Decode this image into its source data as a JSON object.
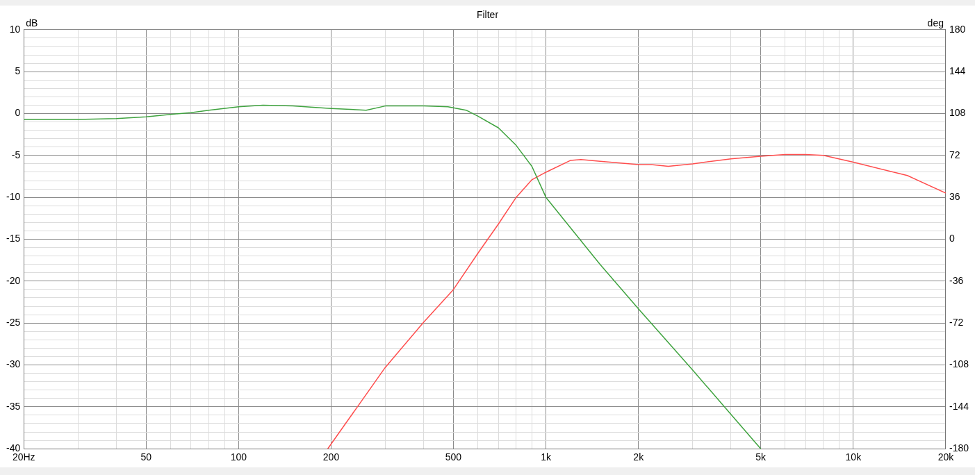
{
  "chart_data": {
    "type": "line",
    "title": "Filter",
    "ylabel": "dB",
    "y2label": "deg",
    "log": "x",
    "grid": true,
    "legend": false,
    "marker": "none",
    "line_style": "solid",
    "xlim": [
      20,
      20000
    ],
    "xticks": [
      {
        "value": 20,
        "label": "20Hz"
      },
      {
        "value": 30,
        "label": null
      },
      {
        "value": 40,
        "label": null
      },
      50,
      {
        "value": 60,
        "label": null
      },
      {
        "value": 70,
        "label": null
      },
      {
        "value": 80,
        "label": null
      },
      {
        "value": 90,
        "label": null
      },
      100,
      200,
      {
        "value": 300,
        "label": null
      },
      {
        "value": 400,
        "label": null
      },
      500,
      {
        "value": 600,
        "label": null
      },
      {
        "value": 700,
        "label": null
      },
      {
        "value": 800,
        "label": null
      },
      {
        "value": 900,
        "label": null
      },
      {
        "value": 1000,
        "label": "1k"
      },
      {
        "value": 2000,
        "label": "2k"
      },
      {
        "value": 3000,
        "label": null
      },
      {
        "value": 4000,
        "label": null
      },
      {
        "value": 5000,
        "label": "5k"
      },
      {
        "value": 6000,
        "label": null
      },
      {
        "value": 7000,
        "label": null
      },
      {
        "value": 8000,
        "label": null
      },
      {
        "value": 9000,
        "label": null
      },
      {
        "value": 10000,
        "label": "10k"
      },
      {
        "value": 20000,
        "label": "20k"
      }
    ],
    "ylim": [
      -40,
      10
    ],
    "yticks": [
      -40,
      {
        "value": -39,
        "label": null
      },
      {
        "value": -38,
        "label": null
      },
      {
        "value": -37,
        "label": null
      },
      {
        "value": -36,
        "label": null
      },
      -35,
      {
        "value": -34,
        "label": null
      },
      {
        "value": -33,
        "label": null
      },
      {
        "value": -32,
        "label": null
      },
      {
        "value": -31,
        "label": null
      },
      -30,
      {
        "value": -29,
        "label": null
      },
      {
        "value": -28,
        "label": null
      },
      {
        "value": -27,
        "label": null
      },
      {
        "value": -26,
        "label": null
      },
      -25,
      {
        "value": -24,
        "label": null
      },
      {
        "value": -23,
        "label": null
      },
      {
        "value": -22,
        "label": null
      },
      {
        "value": -21,
        "label": null
      },
      -20,
      {
        "value": -19,
        "label": null
      },
      {
        "value": -18,
        "label": null
      },
      {
        "value": -17,
        "label": null
      },
      {
        "value": -16,
        "label": null
      },
      -15,
      {
        "value": -14,
        "label": null
      },
      {
        "value": -13,
        "label": null
      },
      {
        "value": -12,
        "label": null
      },
      {
        "value": -11,
        "label": null
      },
      -10,
      {
        "value": -9,
        "label": null
      },
      {
        "value": -8,
        "label": null
      },
      {
        "value": -7,
        "label": null
      },
      {
        "value": -6,
        "label": null
      },
      -5,
      {
        "value": -4,
        "label": null
      },
      {
        "value": -3,
        "label": null
      },
      {
        "value": -2,
        "label": null
      },
      {
        "value": -1,
        "label": null
      },
      0,
      {
        "value": 1,
        "label": null
      },
      {
        "value": 2,
        "label": null
      },
      {
        "value": 3,
        "label": null
      },
      {
        "value": 4,
        "label": null
      },
      5,
      {
        "value": 6,
        "label": null
      },
      {
        "value": 7,
        "label": null
      },
      {
        "value": 8,
        "label": null
      },
      {
        "value": 9,
        "label": null
      },
      10
    ],
    "y2lim": [
      -180,
      180
    ],
    "y2ticks": [
      -180,
      -144,
      -108,
      -72,
      -36,
      0,
      36,
      72,
      108,
      144,
      180
    ],
    "series": [
      {
        "color": "#3fa33f",
        "x": [
          20,
          30,
          40,
          50,
          60,
          70,
          80,
          100,
          120,
          150,
          200,
          260,
          300,
          400,
          480,
          550,
          600,
          700,
          800,
          900,
          1000,
          1500,
          2000,
          3000,
          4000,
          5000
        ],
        "values": [
          -0.7,
          -0.7,
          -0.6,
          -0.4,
          -0.1,
          0.1,
          0.4,
          0.8,
          1.0,
          0.9,
          0.6,
          0.4,
          0.9,
          0.9,
          0.8,
          0.4,
          -0.3,
          -1.7,
          -3.8,
          -6.3,
          -10,
          -18,
          -23.3,
          -30.6,
          -35.9,
          -40
        ]
      },
      {
        "color": "#ff4d4d",
        "x": [
          195,
          300,
          400,
          500,
          600,
          700,
          800,
          900,
          1000,
          1200,
          1300,
          1500,
          2000,
          2200,
          2500,
          3000,
          4000,
          5000,
          6000,
          7000,
          8000,
          10000,
          15000,
          20000
        ],
        "values": [
          -40,
          -30.3,
          -24.9,
          -21,
          -16.7,
          -13.2,
          -10,
          -7.9,
          -7,
          -5.6,
          -5.5,
          -5.7,
          -6.1,
          -6.1,
          -6.3,
          -6.0,
          -5.4,
          -5.1,
          -4.9,
          -4.9,
          -5,
          -5.8,
          -7.4,
          -9.5
        ]
      }
    ]
  }
}
